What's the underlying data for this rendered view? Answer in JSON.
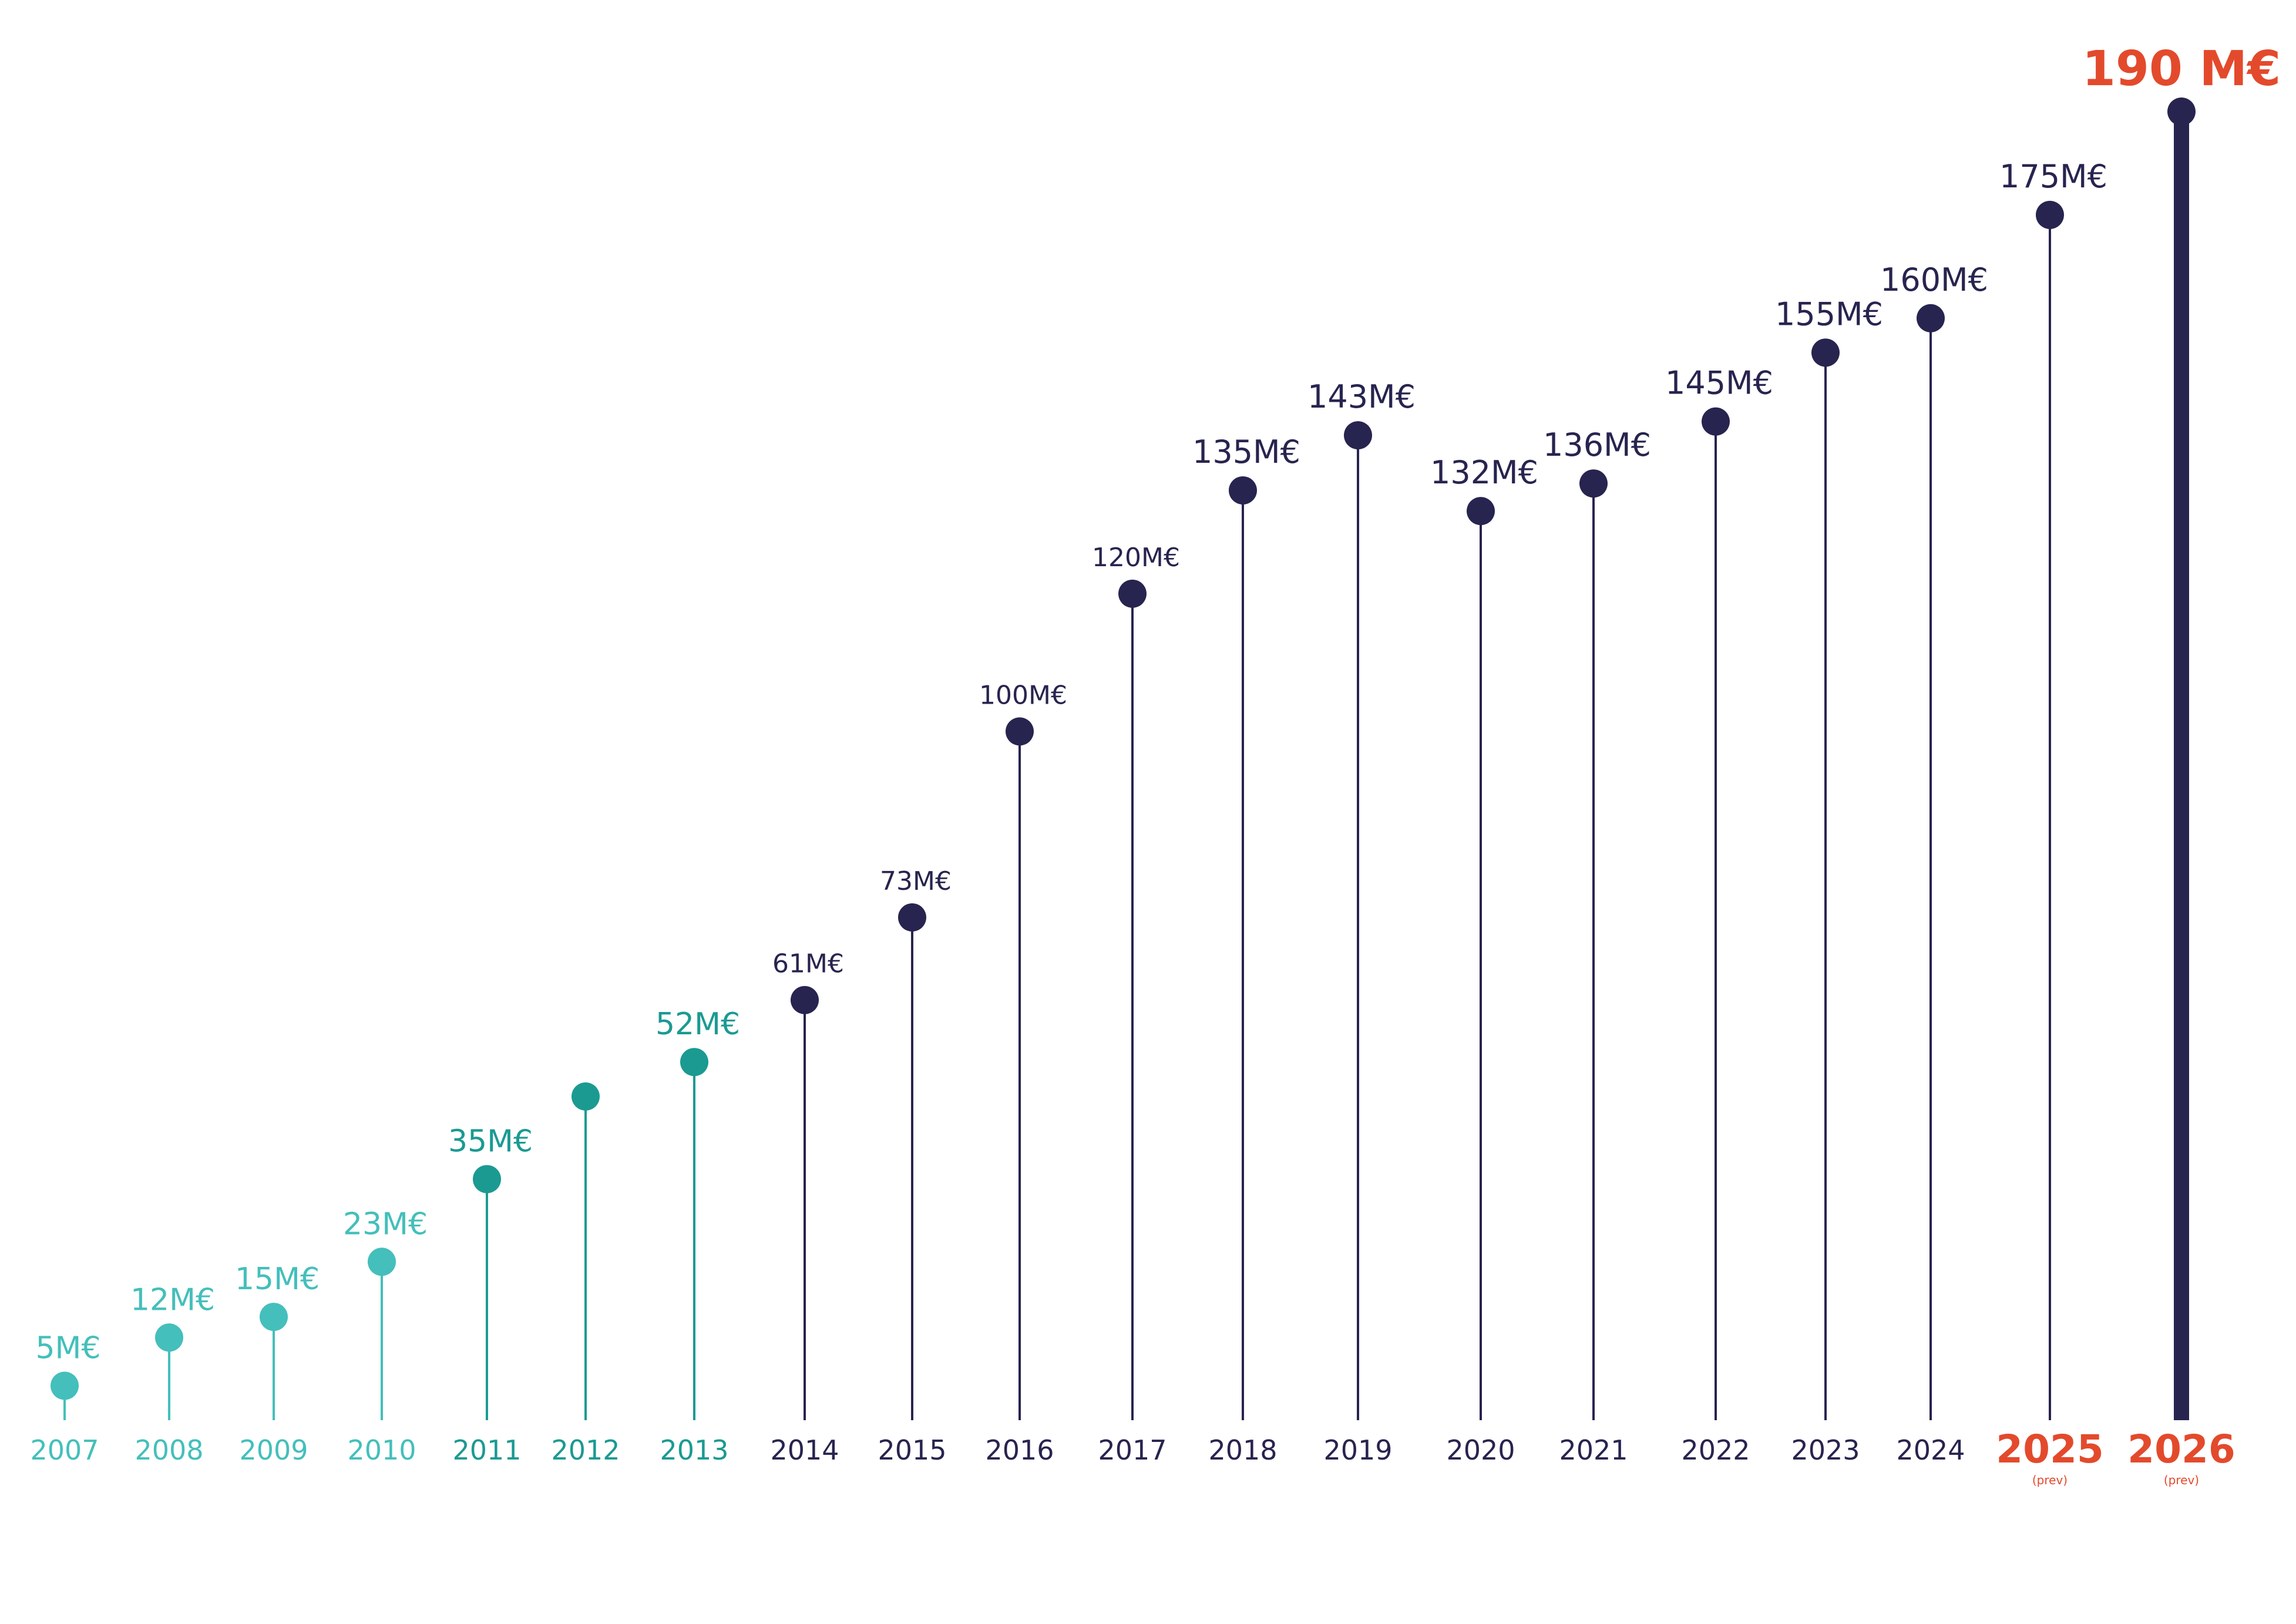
{
  "chart_data": {
    "type": "lollipop",
    "title": "",
    "xlabel": "",
    "ylabel": "",
    "ylim": [
      0,
      190
    ],
    "grid": false,
    "legend": "none",
    "colors": {
      "light_teal": "#44bfbb",
      "dark_teal": "#1b9a92",
      "navy": "#27244f",
      "forecast_red": "#e34a2c"
    },
    "points": [
      {
        "year": "2007",
        "value": 5,
        "label": "5M€",
        "color": "light_teal",
        "sub": ""
      },
      {
        "year": "2008",
        "value": 12,
        "label": "12M€",
        "color": "light_teal",
        "sub": ""
      },
      {
        "year": "2009",
        "value": 15,
        "label": "15M€",
        "color": "light_teal",
        "sub": ""
      },
      {
        "year": "2010",
        "value": 23,
        "label": "23M€",
        "color": "light_teal",
        "sub": ""
      },
      {
        "year": "2011",
        "value": 35,
        "label": "35M€",
        "color": "dark_teal",
        "sub": ""
      },
      {
        "year": "2012",
        "value": 47,
        "label": "",
        "color": "dark_teal",
        "sub": ""
      },
      {
        "year": "2013",
        "value": 52,
        "label": "52M€",
        "color": "dark_teal",
        "sub": ""
      },
      {
        "year": "2014",
        "value": 61,
        "label": "61M€",
        "color": "navy",
        "sub": ""
      },
      {
        "year": "2015",
        "value": 73,
        "label": "73M€",
        "color": "navy",
        "sub": ""
      },
      {
        "year": "2016",
        "value": 100,
        "label": "100M€",
        "color": "navy",
        "sub": ""
      },
      {
        "year": "2017",
        "value": 120,
        "label": "120M€",
        "color": "navy",
        "sub": ""
      },
      {
        "year": "2018",
        "value": 135,
        "label": "135M€",
        "color": "navy",
        "sub": ""
      },
      {
        "year": "2019",
        "value": 143,
        "label": "143M€",
        "color": "navy",
        "sub": ""
      },
      {
        "year": "2020",
        "value": 132,
        "label": "132M€",
        "color": "navy",
        "sub": ""
      },
      {
        "year": "2021",
        "value": 136,
        "label": "136M€",
        "color": "navy",
        "sub": ""
      },
      {
        "year": "2022",
        "value": 145,
        "label": "145M€",
        "color": "navy",
        "sub": ""
      },
      {
        "year": "2023",
        "value": 155,
        "label": "155M€",
        "color": "navy",
        "sub": ""
      },
      {
        "year": "2024",
        "value": 160,
        "label": "160M€",
        "color": "navy",
        "sub": ""
      },
      {
        "year": "2025",
        "value": 175,
        "label": "175M€",
        "color": "navy",
        "sub": "(prev)",
        "year_color": "forecast_red"
      },
      {
        "year": "2026",
        "value": 190,
        "label": "190 M€",
        "color": "navy",
        "sub": "(prev)",
        "year_color": "forecast_red",
        "label_color": "forecast_red",
        "emphasis": true
      }
    ]
  }
}
